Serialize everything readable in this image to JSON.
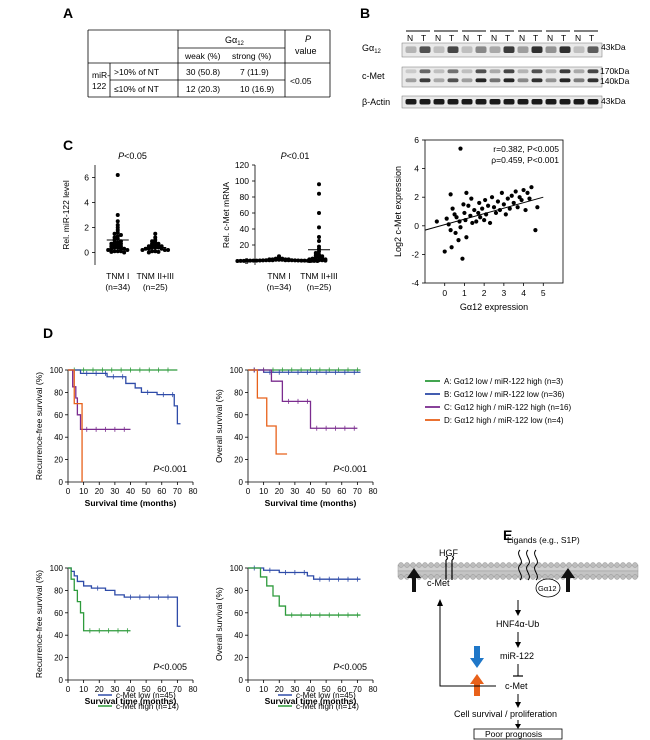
{
  "panels": {
    "A": "A",
    "B": "B",
    "C": "C",
    "D": "D",
    "E": "E"
  },
  "panelA": {
    "gheader": "Gα",
    "gsub": "12",
    "p_l1": "P",
    "p_l2": "value",
    "col1": "weak (%)",
    "col2": "strong (%)",
    "row_group_l1": "miR-",
    "row_group_l2": "122",
    "row1": {
      "label": ">10% of NT",
      "weak": "30 (50.8)",
      "strong": "7 (11.9)"
    },
    "row2": {
      "label": "≤10% of NT",
      "weak": "12 (20.3)",
      "strong": "10 (16.9)"
    },
    "pval": "<0.05"
  },
  "panelB": {
    "lanes": [
      "N",
      "T",
      "N",
      "T",
      "N",
      "T",
      "N",
      "T",
      "N",
      "T",
      "N",
      "T",
      "N",
      "T"
    ],
    "blots": [
      {
        "label": "Gα",
        "sub": "12",
        "marker": "43kDa"
      },
      {
        "label": "c-Met",
        "sub": "",
        "marker": "170kDa",
        "marker2": "140kDa"
      },
      {
        "label": "β-Actin",
        "sub": "",
        "marker": "43kDa"
      }
    ],
    "intensities": {
      "g12": [
        0.25,
        0.7,
        0.2,
        0.75,
        0.2,
        0.45,
        0.3,
        0.8,
        0.35,
        0.85,
        0.4,
        0.85,
        0.2,
        0.65
      ],
      "cmet_hi": [
        0.15,
        0.6,
        0.2,
        0.55,
        0.2,
        0.7,
        0.3,
        0.75,
        0.25,
        0.7,
        0.25,
        0.8,
        0.3,
        0.75
      ],
      "cmet_lo": [
        0.35,
        0.8,
        0.3,
        0.7,
        0.35,
        0.9,
        0.55,
        0.9,
        0.45,
        0.85,
        0.4,
        0.9,
        0.5,
        0.85
      ],
      "actin": [
        0.95,
        0.95,
        0.95,
        0.95,
        0.95,
        0.95,
        0.95,
        0.95,
        0.95,
        0.95,
        0.95,
        0.95,
        0.95,
        0.95
      ]
    }
  },
  "chart_data": [
    {
      "id": "C1",
      "type": "scatter",
      "ylabel": "Rel. miR-122 level",
      "pval": "P<0.05",
      "ylim": [
        -1,
        7
      ],
      "yticks": [
        0,
        2,
        4,
        6
      ],
      "categories": [
        "TNM I\n(n=34)",
        "TNM II+III\n(n=25)"
      ],
      "groups": [
        [
          6.2,
          3.0,
          2.5,
          2.2,
          2.0,
          1.8,
          1.6,
          1.5,
          1.4,
          1.3,
          1.2,
          1.1,
          1.0,
          0.9,
          0.8,
          0.8,
          0.7,
          0.7,
          0.6,
          0.6,
          0.5,
          0.5,
          0.4,
          0.4,
          0.3,
          0.3,
          0.3,
          0.2,
          0.2,
          0.1,
          0.1,
          0.1,
          0.05,
          0.0
        ],
        [
          1.5,
          1.2,
          1.0,
          0.9,
          0.8,
          0.7,
          0.7,
          0.6,
          0.6,
          0.5,
          0.5,
          0.5,
          0.4,
          0.4,
          0.4,
          0.3,
          0.3,
          0.3,
          0.2,
          0.2,
          0.2,
          0.1,
          0.1,
          0.05,
          0.0
        ]
      ],
      "means": [
        1.0,
        0.4
      ]
    },
    {
      "id": "C2",
      "type": "scatter",
      "ylabel": "Rel. c-Met mRNA",
      "pval": "P<0.01",
      "ylim": [
        -5,
        120
      ],
      "yticks": [
        0,
        20,
        40,
        60,
        80,
        100,
        120
      ],
      "categories": [
        "TNM I\n(n=34)",
        "TNM II+III\n(n=25)"
      ],
      "groups": [
        [
          6,
          4,
          3,
          3,
          2,
          2,
          2,
          2,
          1.5,
          1.5,
          1.5,
          1,
          1,
          1,
          1,
          1,
          1,
          0.8,
          0.8,
          0.6,
          0.6,
          0.5,
          0.5,
          0.5,
          0.4,
          0.4,
          0.3,
          0.3,
          0.2,
          0.2,
          0.1,
          0.1,
          0,
          0
        ],
        [
          96,
          84,
          60,
          42,
          30,
          25,
          18,
          15,
          12,
          10,
          8,
          7,
          6,
          5,
          4,
          3,
          3,
          2,
          2,
          1,
          1,
          1,
          0.5,
          0.5,
          0
        ]
      ],
      "means": [
        1.2,
        14
      ]
    },
    {
      "id": "C3",
      "type": "scatter",
      "xlabel": "Gα12 expression",
      "ylabel": "Log2 c-Met expression",
      "xlim": [
        -1,
        6
      ],
      "ylim": [
        -4,
        6
      ],
      "xticks": [
        0,
        1,
        2,
        3,
        4,
        5
      ],
      "yticks": [
        -4,
        -2,
        0,
        2,
        4,
        6
      ],
      "annot1": "r=0.382, P<0.005",
      "annot2": "ρ=0.459, P<0.001",
      "fit": {
        "x0": -1,
        "y0": -0.3,
        "x1": 5,
        "y1": 2.0
      },
      "points": [
        [
          0.8,
          5.4
        ],
        [
          -0.4,
          0.3
        ],
        [
          0,
          -1.8
        ],
        [
          0.1,
          0.5
        ],
        [
          0.2,
          0.1
        ],
        [
          0.3,
          -0.3
        ],
        [
          0.35,
          -1.5
        ],
        [
          0.4,
          1.2
        ],
        [
          0.5,
          0.8
        ],
        [
          0.55,
          -0.5
        ],
        [
          0.6,
          0.6
        ],
        [
          0.7,
          -1.0
        ],
        [
          0.75,
          0.3
        ],
        [
          0.8,
          -0.1
        ],
        [
          0.9,
          -2.3
        ],
        [
          0.95,
          1.5
        ],
        [
          1.0,
          0.9
        ],
        [
          1.05,
          0.4
        ],
        [
          1.1,
          -0.8
        ],
        [
          1.2,
          1.4
        ],
        [
          1.3,
          0.7
        ],
        [
          1.35,
          1.9
        ],
        [
          1.4,
          0.2
        ],
        [
          1.5,
          1.1
        ],
        [
          1.6,
          0.3
        ],
        [
          1.7,
          0.9
        ],
        [
          1.75,
          1.6
        ],
        [
          1.8,
          0.6
        ],
        [
          1.9,
          1.2
        ],
        [
          2.0,
          0.4
        ],
        [
          2.05,
          1.8
        ],
        [
          2.1,
          0.8
        ],
        [
          2.2,
          1.4
        ],
        [
          2.3,
          0.2
        ],
        [
          2.4,
          2.0
        ],
        [
          2.5,
          1.3
        ],
        [
          2.6,
          0.9
        ],
        [
          2.7,
          1.7
        ],
        [
          2.8,
          1.1
        ],
        [
          2.9,
          2.3
        ],
        [
          3.0,
          1.5
        ],
        [
          3.1,
          0.8
        ],
        [
          3.2,
          1.9
        ],
        [
          3.3,
          1.2
        ],
        [
          3.4,
          2.1
        ],
        [
          3.5,
          1.6
        ],
        [
          3.6,
          2.4
        ],
        [
          3.7,
          1.3
        ],
        [
          3.8,
          2.0
        ],
        [
          3.9,
          1.8
        ],
        [
          4.0,
          2.5
        ],
        [
          4.1,
          1.1
        ],
        [
          4.2,
          2.3
        ],
        [
          4.3,
          1.9
        ],
        [
          4.4,
          2.7
        ],
        [
          4.6,
          -0.3
        ],
        [
          4.7,
          1.3
        ],
        [
          0.3,
          2.2
        ],
        [
          1.1,
          2.3
        ]
      ]
    },
    {
      "id": "D1",
      "type": "line",
      "ylabel": "Recurrence-free survival (%)",
      "xlabel": "Survival time (months)",
      "pval": "P<0.001",
      "xlim": [
        0,
        80
      ],
      "ylim": [
        0,
        100
      ],
      "xticks": [
        0,
        10,
        20,
        30,
        40,
        50,
        60,
        70,
        80
      ],
      "yticks": [
        0,
        20,
        40,
        60,
        80,
        100
      ],
      "series": [
        {
          "color": "#2e9b3c",
          "steps": [
            [
              0,
              100
            ],
            [
              70,
              100
            ]
          ]
        },
        {
          "color": "#2e4ba8",
          "steps": [
            [
              0,
              100
            ],
            [
              8,
              97
            ],
            [
              25,
              94
            ],
            [
              37,
              88
            ],
            [
              43,
              84
            ],
            [
              47,
              80
            ],
            [
              57,
              78
            ],
            [
              68,
              68
            ],
            [
              70,
              52
            ],
            [
              72,
              52
            ]
          ]
        },
        {
          "color": "#7b2c8f",
          "steps": [
            [
              0,
              100
            ],
            [
              3,
              85
            ],
            [
              5,
              75
            ],
            [
              6,
              60
            ],
            [
              8,
              47
            ],
            [
              40,
              47
            ]
          ]
        },
        {
          "color": "#e8611a",
          "steps": [
            [
              0,
              100
            ],
            [
              4,
              70
            ],
            [
              8,
              70
            ],
            [
              9,
              0
            ]
          ]
        }
      ]
    },
    {
      "id": "D2",
      "type": "line",
      "ylabel": "Overall survival (%)",
      "xlabel": "Survival time (months)",
      "pval": "P<0.001",
      "xlim": [
        0,
        80
      ],
      "ylim": [
        0,
        100
      ],
      "xticks": [
        0,
        10,
        20,
        30,
        40,
        50,
        60,
        70,
        80
      ],
      "yticks": [
        0,
        20,
        40,
        60,
        80,
        100
      ],
      "series": [
        {
          "color": "#2e9b3c",
          "steps": [
            [
              0,
              100
            ],
            [
              72,
              100
            ]
          ]
        },
        {
          "color": "#2e4ba8",
          "steps": [
            [
              0,
              100
            ],
            [
              10,
              98
            ],
            [
              72,
              98
            ]
          ]
        },
        {
          "color": "#7b2c8f",
          "steps": [
            [
              0,
              100
            ],
            [
              15,
              90
            ],
            [
              22,
              72
            ],
            [
              40,
              48
            ],
            [
              70,
              48
            ]
          ]
        },
        {
          "color": "#e8611a",
          "steps": [
            [
              0,
              100
            ],
            [
              6,
              75
            ],
            [
              12,
              50
            ],
            [
              18,
              25
            ],
            [
              25,
              25
            ]
          ]
        }
      ]
    },
    {
      "id": "D3",
      "type": "line",
      "ylabel": "Recurrence-free survival (%)",
      "xlabel": "Survival time (months)",
      "pval": "P<0.005",
      "xlim": [
        0,
        80
      ],
      "ylim": [
        0,
        100
      ],
      "xticks": [
        0,
        10,
        20,
        30,
        40,
        50,
        60,
        70,
        80
      ],
      "yticks": [
        0,
        20,
        40,
        60,
        80,
        100
      ],
      "legend": [
        "c-Met low (n=45)",
        "c-Met high (n=14)"
      ],
      "series": [
        {
          "color": "#2e4ba8",
          "steps": [
            [
              0,
              100
            ],
            [
              2,
              97
            ],
            [
              4,
              93
            ],
            [
              6,
              88
            ],
            [
              10,
              84
            ],
            [
              15,
              82
            ],
            [
              24,
              80
            ],
            [
              30,
              76
            ],
            [
              36,
              74
            ],
            [
              68,
              74
            ],
            [
              70,
              48
            ],
            [
              72,
              48
            ]
          ]
        },
        {
          "color": "#2e9b3c",
          "steps": [
            [
              0,
              100
            ],
            [
              2,
              90
            ],
            [
              4,
              80
            ],
            [
              6,
              70
            ],
            [
              8,
              60
            ],
            [
              10,
              44
            ],
            [
              40,
              44
            ]
          ]
        }
      ]
    },
    {
      "id": "D4",
      "type": "line",
      "ylabel": "Overall survival (%)",
      "xlabel": "Survival time (months)",
      "pval": "P<0.005",
      "xlim": [
        0,
        80
      ],
      "ylim": [
        0,
        100
      ],
      "xticks": [
        0,
        10,
        20,
        30,
        40,
        50,
        60,
        70,
        80
      ],
      "yticks": [
        0,
        20,
        40,
        60,
        80,
        100
      ],
      "legend": [
        "c-Met low (n=45)",
        "c-Met high (n=14)"
      ],
      "series": [
        {
          "color": "#2e4ba8",
          "steps": [
            [
              0,
              100
            ],
            [
              10,
              98
            ],
            [
              20,
              96
            ],
            [
              38,
              93
            ],
            [
              42,
              90
            ],
            [
              72,
              90
            ]
          ]
        },
        {
          "color": "#2e9b3c",
          "steps": [
            [
              0,
              100
            ],
            [
              8,
              92
            ],
            [
              12,
              84
            ],
            [
              16,
              75
            ],
            [
              20,
              66
            ],
            [
              24,
              58
            ],
            [
              72,
              58
            ]
          ]
        }
      ]
    }
  ],
  "legendD": [
    {
      "text": "A: Gα12 low / miR-122 high (n=3)",
      "color": "#2e9b3c"
    },
    {
      "text": "B: Gα12 low / miR-122 low (n=36)",
      "color": "#2e4ba8"
    },
    {
      "text": "C: Gα12 high / miR-122 high (n=16)",
      "color": "#7b2c8f"
    },
    {
      "text": "D: Gα12 high / miR-122 low (n=4)",
      "color": "#e8611a"
    }
  ],
  "panelE": {
    "hgf": "HGF",
    "ligands": "Ligands (e.g., S1P)",
    "cmet_mem": "c-Met",
    "g12": "Gα12",
    "hnf": "HNF4α-Ub",
    "mir": "miR-122",
    "cmet": "c-Met",
    "survival": "Cell survival / proliferation",
    "prognosis": "Poor prognosis",
    "colors": {
      "down": "#1f77c8",
      "up": "#e8611a"
    }
  }
}
